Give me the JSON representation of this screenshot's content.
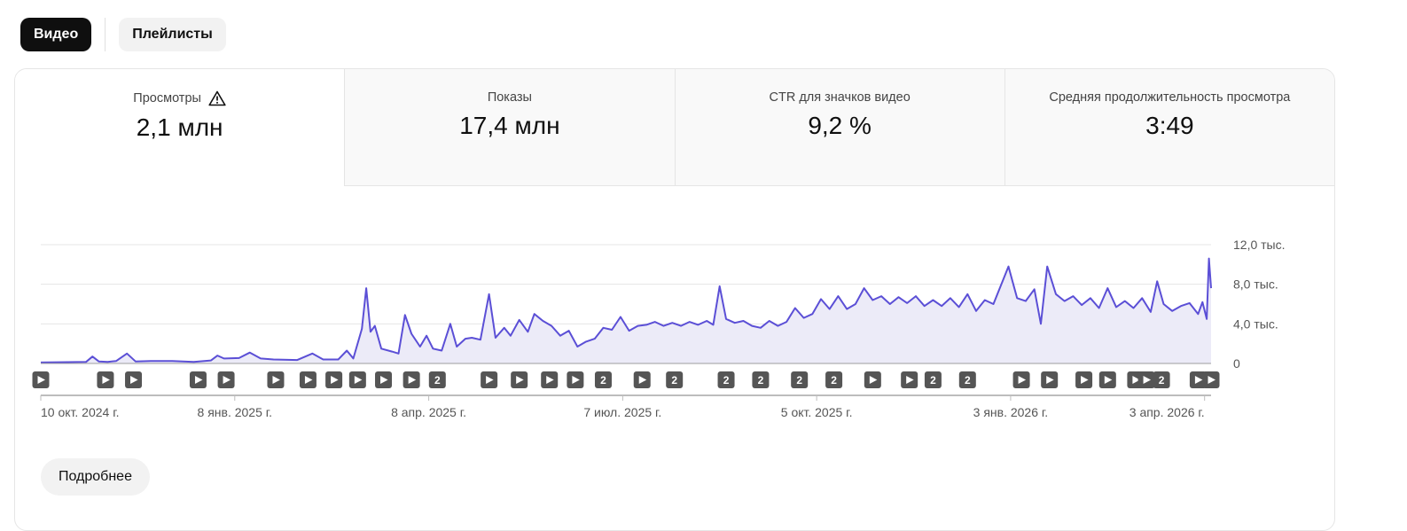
{
  "tabs": [
    {
      "label": "Видео",
      "active": true
    },
    {
      "label": "Плейлисты",
      "active": false
    }
  ],
  "metrics": [
    {
      "label": "Просмотры",
      "value": "2,1 млн",
      "icon": "warning-icon",
      "selected": true
    },
    {
      "label": "Показы",
      "value": "17,4 млн",
      "selected": false
    },
    {
      "label": "CTR для значков видео",
      "value": "9,2 %",
      "selected": false
    },
    {
      "label": "Средняя продолжительность просмотра",
      "value": "3:49",
      "selected": false
    }
  ],
  "more_button": "Подробнее",
  "chart_data": {
    "type": "area",
    "x_start": "2024-10-10",
    "x_end": "2026-04-06",
    "ylim": [
      0,
      12000
    ],
    "y_ticks": [
      {
        "value": 0,
        "label": "0"
      },
      {
        "value": 4000,
        "label": "4,0 тыс."
      },
      {
        "value": 8000,
        "label": "8,0 тыс."
      },
      {
        "value": 12000,
        "label": "12,0 тыс."
      }
    ],
    "x_ticks": [
      {
        "date": "2024-10-10",
        "label": "10 окт. 2024 г."
      },
      {
        "date": "2025-01-08",
        "label": "8 янв. 2025 г."
      },
      {
        "date": "2025-04-08",
        "label": "8 апр. 2025 г."
      },
      {
        "date": "2025-07-07",
        "label": "7 июл. 2025 г."
      },
      {
        "date": "2025-10-05",
        "label": "5 окт. 2025 г."
      },
      {
        "date": "2026-01-03",
        "label": "3 янв. 2026 г."
      },
      {
        "date": "2026-04-03",
        "label": "3 апр. 2026 г."
      }
    ],
    "colors": {
      "line": "#5b4fd6",
      "fill": "#ecebf8",
      "grid": "#e5e5e5",
      "marker": "#555555"
    },
    "series": [
      {
        "points": [
          [
            "2024-10-10",
            100
          ],
          [
            "2024-10-31",
            150
          ],
          [
            "2024-11-03",
            700
          ],
          [
            "2024-11-06",
            200
          ],
          [
            "2024-11-10",
            150
          ],
          [
            "2024-11-14",
            250
          ],
          [
            "2024-11-19",
            1000
          ],
          [
            "2024-11-23",
            200
          ],
          [
            "2024-11-30",
            250
          ],
          [
            "2024-12-10",
            250
          ],
          [
            "2024-12-20",
            150
          ],
          [
            "2024-12-28",
            300
          ],
          [
            "2024-12-31",
            800
          ],
          [
            "2025-01-03",
            500
          ],
          [
            "2025-01-10",
            550
          ],
          [
            "2025-01-15",
            1100
          ],
          [
            "2025-01-20",
            500
          ],
          [
            "2025-01-26",
            400
          ],
          [
            "2025-02-06",
            350
          ],
          [
            "2025-02-13",
            1000
          ],
          [
            "2025-02-18",
            400
          ],
          [
            "2025-02-25",
            400
          ],
          [
            "2025-03-01",
            1300
          ],
          [
            "2025-03-04",
            500
          ],
          [
            "2025-03-08",
            3500
          ],
          [
            "2025-03-10",
            7600
          ],
          [
            "2025-03-12",
            3200
          ],
          [
            "2025-03-14",
            3800
          ],
          [
            "2025-03-17",
            1500
          ],
          [
            "2025-03-22",
            1200
          ],
          [
            "2025-03-25",
            1000
          ],
          [
            "2025-03-28",
            4900
          ],
          [
            "2025-03-31",
            3000
          ],
          [
            "2025-04-04",
            1700
          ],
          [
            "2025-04-07",
            2800
          ],
          [
            "2025-04-10",
            1500
          ],
          [
            "2025-04-14",
            1300
          ],
          [
            "2025-04-18",
            4000
          ],
          [
            "2025-04-21",
            1700
          ],
          [
            "2025-04-25",
            2500
          ],
          [
            "2025-04-28",
            2600
          ],
          [
            "2025-05-02",
            2400
          ],
          [
            "2025-05-06",
            7000
          ],
          [
            "2025-05-09",
            2600
          ],
          [
            "2025-05-13",
            3600
          ],
          [
            "2025-05-16",
            2800
          ],
          [
            "2025-05-20",
            4400
          ],
          [
            "2025-05-24",
            3200
          ],
          [
            "2025-05-27",
            5000
          ],
          [
            "2025-05-31",
            4300
          ],
          [
            "2025-06-04",
            3800
          ],
          [
            "2025-06-08",
            2800
          ],
          [
            "2025-06-12",
            3300
          ],
          [
            "2025-06-16",
            1700
          ],
          [
            "2025-06-20",
            2200
          ],
          [
            "2025-06-24",
            2500
          ],
          [
            "2025-06-28",
            3600
          ],
          [
            "2025-07-02",
            3400
          ],
          [
            "2025-07-06",
            4700
          ],
          [
            "2025-07-10",
            3300
          ],
          [
            "2025-07-14",
            3800
          ],
          [
            "2025-07-18",
            3900
          ],
          [
            "2025-07-22",
            4200
          ],
          [
            "2025-07-26",
            3800
          ],
          [
            "2025-07-30",
            4100
          ],
          [
            "2025-08-03",
            3800
          ],
          [
            "2025-08-07",
            4200
          ],
          [
            "2025-08-11",
            3900
          ],
          [
            "2025-08-15",
            4300
          ],
          [
            "2025-08-18",
            3900
          ],
          [
            "2025-08-21",
            7800
          ],
          [
            "2025-08-24",
            4500
          ],
          [
            "2025-08-28",
            4100
          ],
          [
            "2025-09-01",
            4300
          ],
          [
            "2025-09-05",
            3800
          ],
          [
            "2025-09-09",
            3600
          ],
          [
            "2025-09-13",
            4300
          ],
          [
            "2025-09-17",
            3800
          ],
          [
            "2025-09-21",
            4200
          ],
          [
            "2025-09-25",
            5600
          ],
          [
            "2025-09-29",
            4600
          ],
          [
            "2025-10-03",
            5000
          ],
          [
            "2025-10-07",
            6500
          ],
          [
            "2025-10-11",
            5500
          ],
          [
            "2025-10-15",
            6800
          ],
          [
            "2025-10-19",
            5500
          ],
          [
            "2025-10-23",
            6000
          ],
          [
            "2025-10-27",
            7600
          ],
          [
            "2025-10-31",
            6400
          ],
          [
            "2025-11-04",
            6800
          ],
          [
            "2025-11-08",
            6000
          ],
          [
            "2025-11-12",
            6700
          ],
          [
            "2025-11-16",
            6100
          ],
          [
            "2025-11-20",
            6800
          ],
          [
            "2025-11-24",
            5800
          ],
          [
            "2025-11-28",
            6400
          ],
          [
            "2025-12-02",
            5800
          ],
          [
            "2025-12-06",
            6600
          ],
          [
            "2025-12-10",
            5700
          ],
          [
            "2025-12-14",
            7000
          ],
          [
            "2025-12-18",
            5300
          ],
          [
            "2025-12-22",
            6400
          ],
          [
            "2025-12-26",
            6000
          ],
          [
            "2026-01-02",
            9800
          ],
          [
            "2026-01-06",
            6600
          ],
          [
            "2026-01-10",
            6300
          ],
          [
            "2026-01-14",
            7500
          ],
          [
            "2026-01-17",
            4000
          ],
          [
            "2026-01-20",
            9800
          ],
          [
            "2026-01-24",
            7000
          ],
          [
            "2026-01-28",
            6300
          ],
          [
            "2026-02-01",
            6800
          ],
          [
            "2026-02-05",
            5900
          ],
          [
            "2026-02-09",
            6600
          ],
          [
            "2026-02-13",
            5600
          ],
          [
            "2026-02-17",
            7600
          ],
          [
            "2026-02-21",
            5700
          ],
          [
            "2026-02-25",
            6300
          ],
          [
            "2026-03-01",
            5600
          ],
          [
            "2026-03-05",
            6600
          ],
          [
            "2026-03-09",
            5200
          ],
          [
            "2026-03-12",
            8300
          ],
          [
            "2026-03-15",
            6000
          ],
          [
            "2026-03-19",
            5300
          ],
          [
            "2026-03-23",
            5800
          ],
          [
            "2026-03-27",
            6100
          ],
          [
            "2026-03-31",
            5000
          ],
          [
            "2026-04-02",
            6200
          ],
          [
            "2026-04-04",
            4500
          ],
          [
            "2026-04-05",
            10600
          ],
          [
            "2026-04-06",
            7600
          ]
        ]
      }
    ],
    "markers": [
      {
        "date": "2024-11-09",
        "type": "play"
      },
      {
        "date": "2024-11-22",
        "type": "play"
      },
      {
        "date": "2024-12-22",
        "type": "play"
      },
      {
        "date": "2025-01-04",
        "type": "play"
      },
      {
        "date": "2025-01-27",
        "type": "play"
      },
      {
        "date": "2025-02-11",
        "type": "play"
      },
      {
        "date": "2025-02-23",
        "type": "play"
      },
      {
        "date": "2025-03-06",
        "type": "play"
      },
      {
        "date": "2025-03-18",
        "type": "play"
      },
      {
        "date": "2025-03-31",
        "type": "play"
      },
      {
        "date": "2025-04-12",
        "type": "count",
        "count": "2"
      },
      {
        "date": "2025-04-33",
        "type": "play"
      },
      {
        "date": "2025-05-06",
        "type": "play"
      },
      {
        "date": "2025-05-20",
        "type": "play"
      },
      {
        "date": "2025-06-03",
        "type": "play"
      },
      {
        "date": "2025-06-15",
        "type": "play"
      },
      {
        "date": "2025-06-28",
        "type": "count",
        "count": "2"
      },
      {
        "date": "2025-07-16",
        "type": "play"
      },
      {
        "date": "2025-07-31",
        "type": "count",
        "count": "2"
      },
      {
        "date": "2025-08-24",
        "type": "count",
        "count": "2"
      },
      {
        "date": "2025-09-09",
        "type": "count",
        "count": "2"
      },
      {
        "date": "2025-09-27",
        "type": "count",
        "count": "2"
      },
      {
        "date": "2025-10-13",
        "type": "count",
        "count": "2"
      },
      {
        "date": "2025-10-31",
        "type": "play"
      },
      {
        "date": "2025-11-17",
        "type": "play"
      },
      {
        "date": "2025-11-28",
        "type": "count",
        "count": "2"
      },
      {
        "date": "2025-12-14",
        "type": "count",
        "count": "2"
      },
      {
        "date": "2026-01-08",
        "type": "play"
      },
      {
        "date": "2026-01-21",
        "type": "play"
      },
      {
        "date": "2026-02-06",
        "type": "play"
      },
      {
        "date": "2026-02-17",
        "type": "play"
      },
      {
        "date": "2026-03-02",
        "type": "play"
      },
      {
        "date": "2026-03-14",
        "type": "count",
        "count": "2"
      },
      {
        "date": "2026-03-07",
        "type": "play"
      },
      {
        "date": "2026-03-31",
        "type": "play"
      },
      {
        "date": "2026-04-06",
        "type": "play"
      }
    ]
  }
}
